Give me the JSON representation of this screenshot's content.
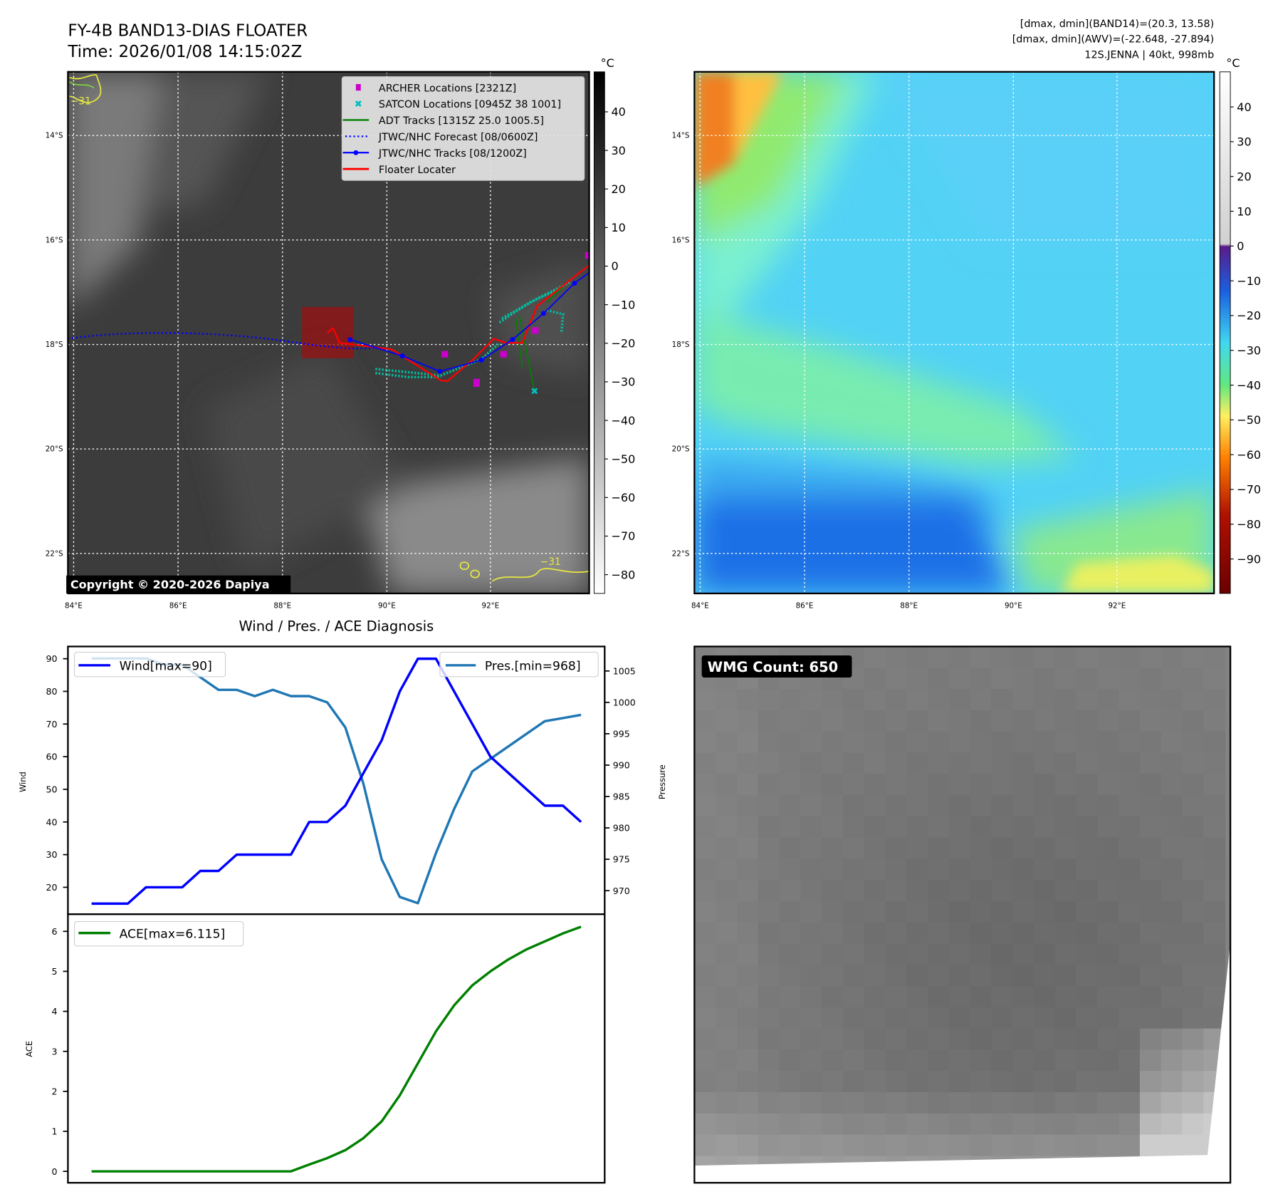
{
  "left_panel": {
    "title": "FY-4B BAND13-DIAS FLOATER",
    "time": "Time: 2026/01/08 14:15:02Z",
    "colorbar_unit": "°C",
    "colorbar_ticks": [
      "40",
      "30",
      "20",
      "10",
      "0",
      "−10",
      "−20",
      "−30",
      "−40",
      "−50",
      "−60",
      "−70",
      "−80"
    ],
    "lat_labels": [
      "14°S",
      "16°S",
      "18°S",
      "20°S",
      "22°S"
    ],
    "lon_labels": [
      "84°E",
      "86°E",
      "88°E",
      "90°E",
      "92°E"
    ],
    "contour_label": "−31",
    "copyright": "Copyright © 2020-2026 Dapiya",
    "legend": [
      {
        "label": "ARCHER Locations [2321Z]",
        "color": "#cc00cc"
      },
      {
        "label": "SATCON Locations [0945Z 38 1001]",
        "color": "#00c0c0"
      },
      {
        "label": "ADT Tracks [1315Z 25.0 1005.5]",
        "color": "#008000"
      },
      {
        "label": "JTWC/NHC Forecast [08/0600Z]",
        "color": "#0000ff"
      },
      {
        "label": "JTWC/NHC Tracks [08/1200Z]",
        "color": "#0000ff"
      },
      {
        "label": "Floater Locater",
        "color": "#ff0000"
      }
    ]
  },
  "right_panel": {
    "info_line1": "[dmax, dmin](BAND14)=(20.3, 13.58)",
    "info_line2": "[dmax, dmin](AWV)=(-22.648, -27.894)",
    "info_line3": "12S.JENNA | 40kt, 998mb",
    "colorbar_unit": "°C",
    "colorbar_ticks": [
      "40",
      "30",
      "20",
      "10",
      "0",
      "−10",
      "−20",
      "−30",
      "−40",
      "−50",
      "−60",
      "−70",
      "−80",
      "−90"
    ],
    "lat_labels": [
      "14°S",
      "16°S",
      "18°S",
      "20°S",
      "22°S"
    ],
    "lon_labels": [
      "84°E",
      "86°E",
      "88°E",
      "90°E",
      "92°E"
    ]
  },
  "wmg_panel": {
    "label": "WMG Count: 650"
  },
  "chart_data": {
    "type": "line",
    "title": "Wind / Pres. / ACE Diagnosis",
    "x": [
      0,
      1,
      2,
      3,
      4,
      5,
      6,
      7,
      8,
      9,
      10,
      11,
      12,
      13,
      14,
      15,
      16,
      17,
      18,
      19,
      20,
      21,
      22,
      23,
      24,
      25,
      26,
      27
    ],
    "series": [
      {
        "name": "Wind[max=90]",
        "axis": "Wind",
        "color": "#0000ff",
        "values": [
          15,
          15,
          15,
          20,
          20,
          20,
          25,
          25,
          30,
          30,
          30,
          30,
          40,
          40,
          45,
          55,
          65,
          80,
          90,
          90,
          80,
          70,
          60,
          55,
          50,
          45,
          45,
          40
        ]
      },
      {
        "name": "Pres.[min=968]",
        "axis": "Pressure",
        "color": "#1f77b4",
        "values": [
          1007,
          1007,
          1007,
          1007,
          1006,
          1006,
          1004,
          1002,
          1002,
          1001,
          1002,
          1001,
          1001,
          1000,
          996,
          987,
          975,
          969,
          968,
          976,
          983,
          989,
          991,
          993,
          995,
          997,
          997.5,
          998
        ]
      },
      {
        "name": "ACE[max=6.115]",
        "axis": "ACE",
        "color": "#008000",
        "values": [
          0,
          0,
          0,
          0,
          0,
          0,
          0,
          0,
          0,
          0,
          0,
          0,
          0.17,
          0.33,
          0.53,
          0.83,
          1.25,
          1.9,
          2.7,
          3.5,
          4.15,
          4.65,
          5.0,
          5.3,
          5.55,
          5.75,
          5.95,
          6.115
        ]
      }
    ],
    "wind_axis": {
      "label": "Wind",
      "ticks": [
        "20",
        "30",
        "40",
        "50",
        "60",
        "70",
        "80",
        "90"
      ],
      "ylim": [
        11,
        93
      ]
    },
    "pressure_axis": {
      "label": "Pressure",
      "ticks": [
        "970",
        "975",
        "980",
        "985",
        "990",
        "995",
        "1000",
        "1005"
      ],
      "ylim": [
        966,
        1009
      ]
    },
    "ace_axis": {
      "label": "ACE",
      "ticks": [
        "0",
        "1",
        "2",
        "3",
        "4",
        "5",
        "6"
      ],
      "ylim": [
        -0.3,
        6.45
      ]
    }
  }
}
